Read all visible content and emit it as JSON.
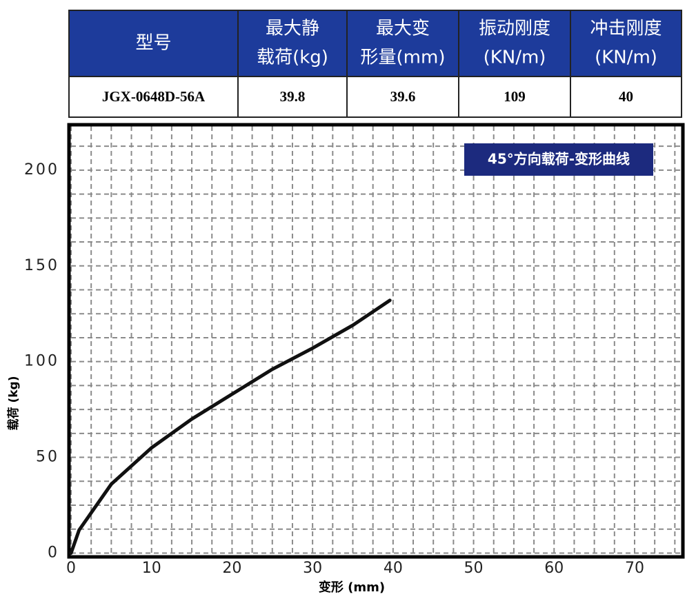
{
  "table": {
    "header": [
      [
        "型号"
      ],
      [
        "最大静",
        "载荷(kg)"
      ],
      [
        "最大变",
        "形量(mm)"
      ],
      [
        "振动刚度",
        "(KN/m)"
      ],
      [
        "冲击刚度",
        "(KN/m)"
      ]
    ],
    "rows": [
      [
        "JGX-0648D-56A",
        "39.8",
        "39.6",
        "109",
        "40"
      ]
    ]
  },
  "chart_data": {
    "type": "line",
    "title": "45°方向载荷-变形曲线",
    "xlabel": "变形 (mm)",
    "ylabel": "载荷 (kg)",
    "x": [
      0,
      1,
      2.5,
      5,
      10,
      15,
      20,
      25,
      30,
      35,
      39.6
    ],
    "series": [
      {
        "name": "载荷-变形",
        "color": "#111111",
        "values": [
          0,
          12,
          21,
          36,
          55,
          70,
          83,
          96,
          107,
          119,
          132
        ]
      }
    ],
    "xlim": [
      0,
      76
    ],
    "ylim": [
      -2,
      223
    ],
    "xticks": [
      0,
      10,
      20,
      30,
      40,
      50,
      60,
      70
    ],
    "yticks": [
      0,
      50,
      100,
      150,
      200
    ],
    "grid": true
  }
}
